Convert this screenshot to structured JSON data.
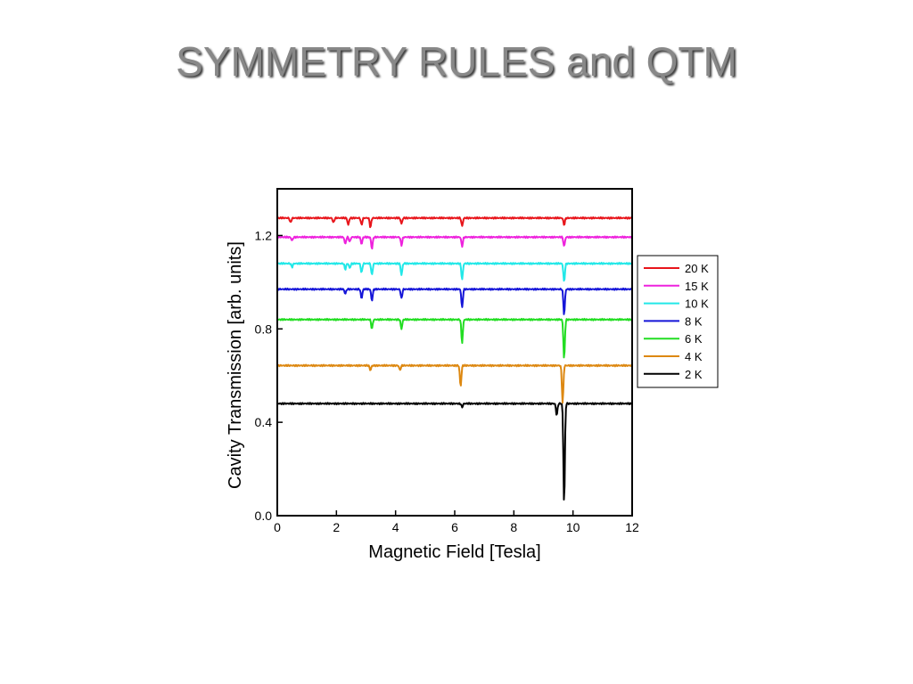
{
  "slide": {
    "title": "SYMMETRY RULES and QTM"
  },
  "chart_data": {
    "type": "line",
    "title": "",
    "xlabel": "Magnetic Field [Tesla]",
    "ylabel": "Cavity Transmission [arb. units]",
    "xlim": [
      0,
      12
    ],
    "ylim": [
      0,
      1.4
    ],
    "xticks": [
      "0",
      "2",
      "4",
      "6",
      "8",
      "10",
      "12"
    ],
    "yticks": [
      "0.0",
      "0.4",
      "0.8",
      "1.2"
    ],
    "grid": false,
    "legend_position": "right",
    "series": [
      {
        "name": "20 K",
        "color": "#e8151b",
        "baseline": 1.275,
        "dips": [
          [
            0.45,
            0.02
          ],
          [
            1.9,
            0.02
          ],
          [
            2.4,
            0.03
          ],
          [
            2.85,
            0.03
          ],
          [
            3.15,
            0.04
          ],
          [
            4.2,
            0.025
          ],
          [
            6.25,
            0.035
          ],
          [
            9.7,
            0.03
          ]
        ]
      },
      {
        "name": "15 K",
        "color": "#ee22dd",
        "baseline": 1.193,
        "dips": [
          [
            0.5,
            0.015
          ],
          [
            2.3,
            0.03
          ],
          [
            2.45,
            0.02
          ],
          [
            2.85,
            0.03
          ],
          [
            3.2,
            0.05
          ],
          [
            4.2,
            0.035
          ],
          [
            6.25,
            0.04
          ],
          [
            9.7,
            0.04
          ]
        ]
      },
      {
        "name": "10 K",
        "color": "#22e8e8",
        "baseline": 1.08,
        "dips": [
          [
            0.5,
            0.015
          ],
          [
            2.3,
            0.025
          ],
          [
            2.45,
            0.02
          ],
          [
            2.85,
            0.04
          ],
          [
            3.2,
            0.05
          ],
          [
            4.2,
            0.05
          ],
          [
            6.25,
            0.07
          ],
          [
            9.7,
            0.08
          ]
        ]
      },
      {
        "name": "8 K",
        "color": "#1515d8",
        "baseline": 0.97,
        "dips": [
          [
            2.3,
            0.02
          ],
          [
            2.85,
            0.04
          ],
          [
            3.2,
            0.05
          ],
          [
            4.2,
            0.04
          ],
          [
            6.25,
            0.08
          ],
          [
            9.7,
            0.11
          ]
        ]
      },
      {
        "name": "6 K",
        "color": "#22dd22",
        "baseline": 0.84,
        "dips": [
          [
            3.2,
            0.04
          ],
          [
            4.2,
            0.04
          ],
          [
            6.25,
            0.1
          ],
          [
            9.7,
            0.17
          ]
        ]
      },
      {
        "name": "4 K",
        "color": "#dd8811",
        "baseline": 0.643,
        "dips": [
          [
            3.15,
            0.02
          ],
          [
            4.15,
            0.02
          ],
          [
            6.2,
            0.09
          ],
          [
            9.65,
            0.16
          ]
        ]
      },
      {
        "name": "2 K",
        "color": "#000000",
        "baseline": 0.48,
        "dips": [
          [
            6.25,
            0.015
          ],
          [
            9.45,
            0.05
          ],
          [
            9.7,
            0.43
          ]
        ]
      }
    ]
  }
}
